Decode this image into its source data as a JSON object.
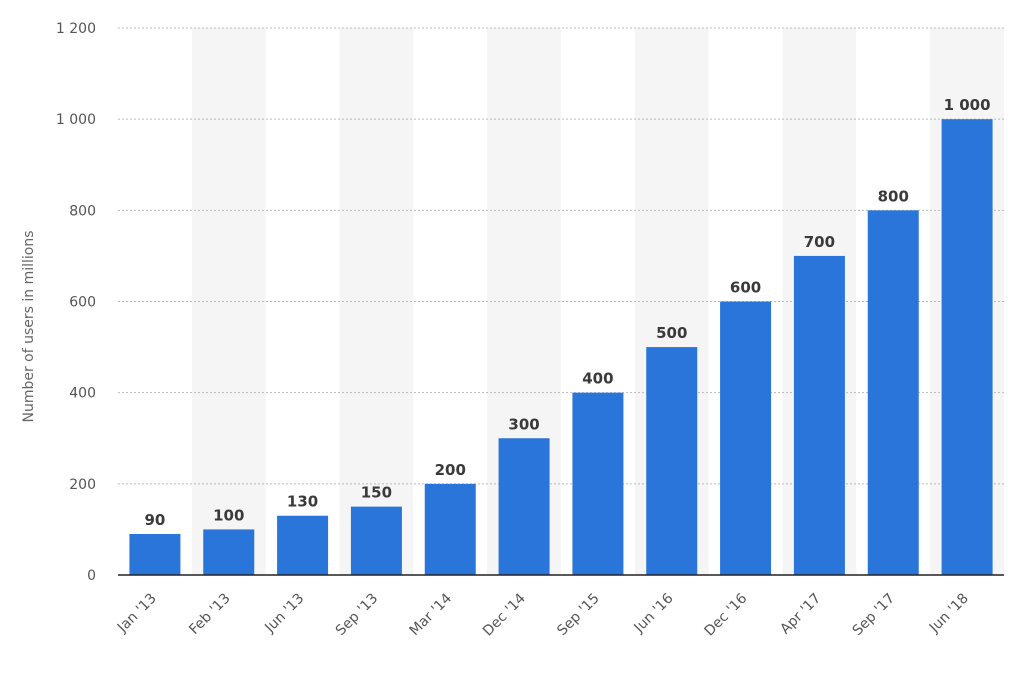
{
  "chart_data": {
    "type": "bar",
    "title": "",
    "xlabel": "",
    "ylabel": "Number of users in millions",
    "categories": [
      "Jan '13",
      "Feb '13",
      "Jun '13",
      "Sep '13",
      "Mar '14",
      "Dec '14",
      "Sep '15",
      "Jun '16",
      "Dec '16",
      "Apr '17",
      "Sep '17",
      "Jun '18"
    ],
    "values": [
      90,
      100,
      130,
      150,
      200,
      300,
      400,
      500,
      600,
      700,
      800,
      1000
    ],
    "value_labels": [
      "90",
      "100",
      "130",
      "150",
      "200",
      "300",
      "400",
      "500",
      "600",
      "700",
      "800",
      "1 000"
    ],
    "ylim": [
      0,
      1200
    ],
    "yticks": [
      0,
      200,
      400,
      600,
      800,
      1000,
      1200
    ],
    "ytick_labels": [
      "0",
      "200",
      "400",
      "600",
      "800",
      "1 000",
      "1 200"
    ],
    "grid": true,
    "legend": "none",
    "colors": {
      "bar": "#2a75d9",
      "grid": "#bbbbbb",
      "band": "#f5f5f5",
      "axis": "#222222"
    }
  }
}
